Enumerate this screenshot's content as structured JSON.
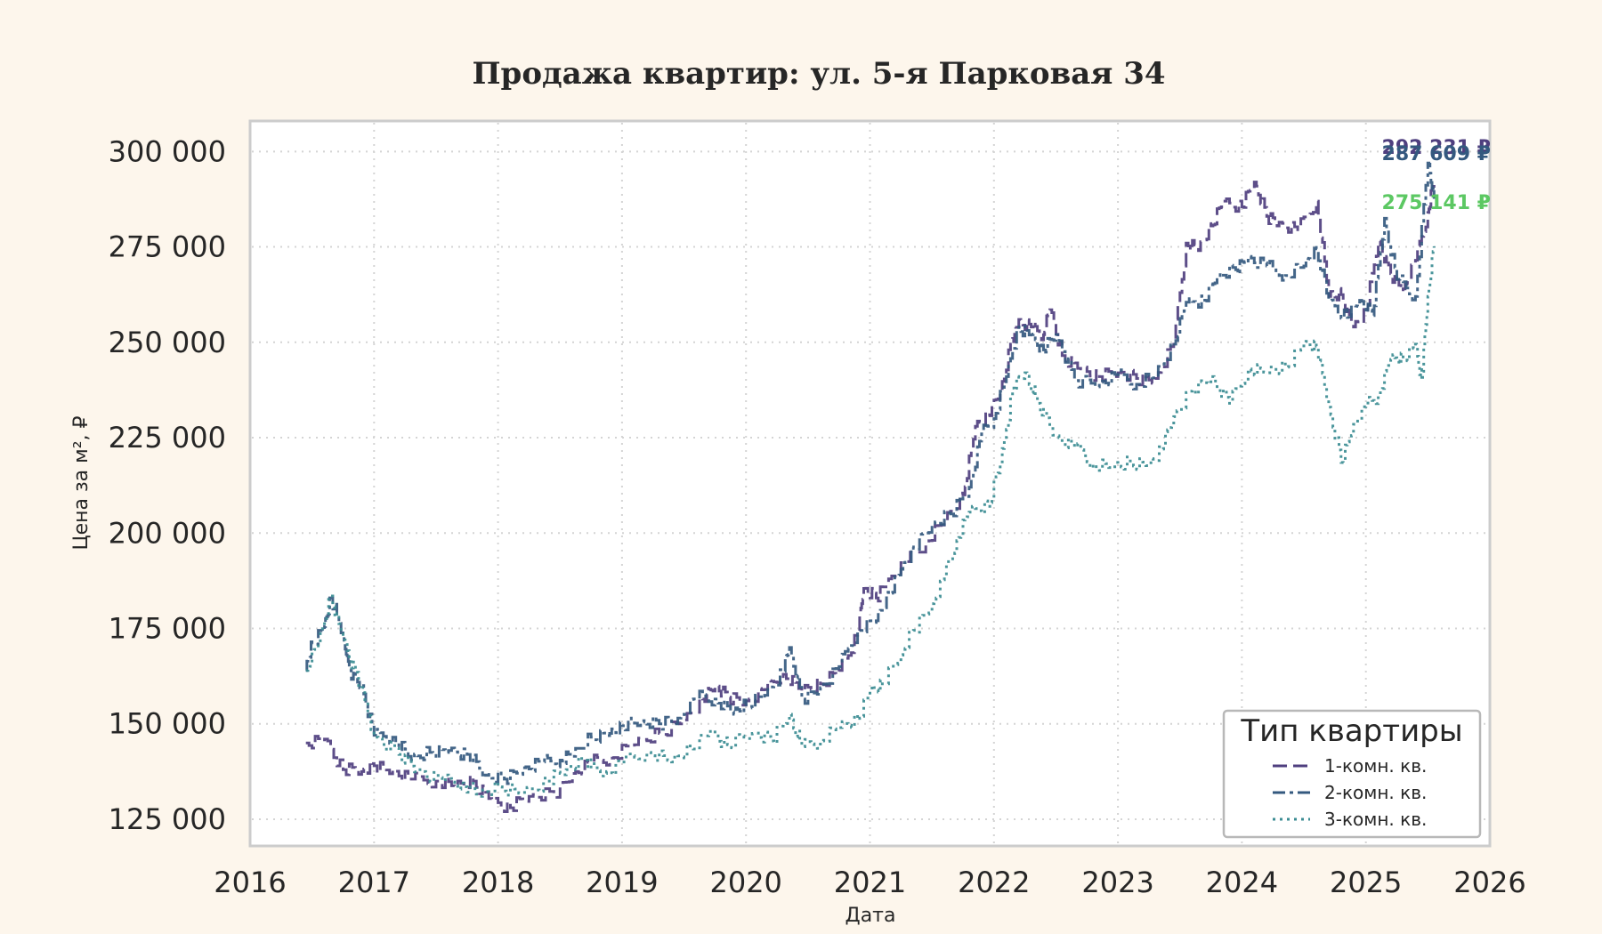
{
  "chart_data": {
    "type": "line",
    "title": "Продажа квартир: ул. 5-я Парковая 34",
    "xlabel": "Дата",
    "ylabel": "Цена за м², ₽",
    "xlim": [
      2016.0,
      2026.0
    ],
    "ylim": [
      118000,
      308000
    ],
    "x_ticks": [
      2016,
      2017,
      2018,
      2019,
      2020,
      2021,
      2022,
      2023,
      2024,
      2025,
      2026
    ],
    "y_ticks": [
      125000,
      150000,
      175000,
      200000,
      225000,
      250000,
      275000,
      300000
    ],
    "y_tick_labels": [
      "125 000",
      "150 000",
      "175 000",
      "200 000",
      "225 000",
      "250 000",
      "275 000",
      "300 000"
    ],
    "grid": true,
    "legend": {
      "title": "Тип квартиры",
      "placement": "bottom-right"
    },
    "series": [
      {
        "name": "1-комн. кв.",
        "color": "#4f3f7f",
        "style": "dashed",
        "end_label": "292 231 ₽",
        "points": [
          [
            2016.45,
            145000
          ],
          [
            2016.6,
            146000
          ],
          [
            2016.75,
            138000
          ],
          [
            2016.9,
            137500
          ],
          [
            2017.0,
            139000
          ],
          [
            2017.15,
            138000
          ],
          [
            2017.3,
            135500
          ],
          [
            2017.5,
            135000
          ],
          [
            2017.65,
            133500
          ],
          [
            2017.8,
            135000
          ],
          [
            2017.95,
            130000
          ],
          [
            2018.1,
            128000
          ],
          [
            2018.25,
            131000
          ],
          [
            2018.45,
            131500
          ],
          [
            2018.6,
            137000
          ],
          [
            2018.75,
            140000
          ],
          [
            2018.9,
            141000
          ],
          [
            2019.1,
            144500
          ],
          [
            2019.3,
            147500
          ],
          [
            2019.5,
            151000
          ],
          [
            2019.65,
            156500
          ],
          [
            2019.75,
            160000
          ],
          [
            2019.85,
            157000
          ],
          [
            2020.0,
            156000
          ],
          [
            2020.15,
            159000
          ],
          [
            2020.3,
            163000
          ],
          [
            2020.45,
            158500
          ],
          [
            2020.6,
            160500
          ],
          [
            2020.75,
            164000
          ],
          [
            2020.9,
            173500
          ],
          [
            2020.95,
            185500
          ],
          [
            2021.05,
            183000
          ],
          [
            2021.15,
            188000
          ],
          [
            2021.3,
            192500
          ],
          [
            2021.45,
            197500
          ],
          [
            2021.6,
            203000
          ],
          [
            2021.75,
            210000
          ],
          [
            2021.85,
            228000
          ],
          [
            2021.95,
            231000
          ],
          [
            2022.05,
            237000
          ],
          [
            2022.15,
            251000
          ],
          [
            2022.2,
            256000
          ],
          [
            2022.3,
            254000
          ],
          [
            2022.4,
            252000
          ],
          [
            2022.45,
            258500
          ],
          [
            2022.55,
            246500
          ],
          [
            2022.7,
            243000
          ],
          [
            2022.85,
            241000
          ],
          [
            2023.0,
            242000
          ],
          [
            2023.15,
            240500
          ],
          [
            2023.3,
            240500
          ],
          [
            2023.45,
            250000
          ],
          [
            2023.55,
            276000
          ],
          [
            2023.65,
            274000
          ],
          [
            2023.75,
            280500
          ],
          [
            2023.85,
            287000
          ],
          [
            2024.0,
            285500
          ],
          [
            2024.1,
            292000
          ],
          [
            2024.2,
            283000
          ],
          [
            2024.3,
            281500
          ],
          [
            2024.45,
            279500
          ],
          [
            2024.6,
            287000
          ],
          [
            2024.7,
            262000
          ],
          [
            2024.8,
            262500
          ],
          [
            2024.9,
            254000
          ],
          [
            2025.0,
            258000
          ],
          [
            2025.1,
            276500
          ],
          [
            2025.2,
            268000
          ],
          [
            2025.3,
            264000
          ],
          [
            2025.4,
            271500
          ],
          [
            2025.5,
            284000
          ],
          [
            2025.55,
            292231
          ]
        ]
      },
      {
        "name": "2-комн. кв.",
        "color": "#34597f",
        "style": "dash-dot",
        "end_label": "287 609 ₽",
        "points": [
          [
            2016.45,
            164000
          ],
          [
            2016.5,
            171000
          ],
          [
            2016.6,
            175500
          ],
          [
            2016.65,
            183000
          ],
          [
            2016.75,
            173000
          ],
          [
            2016.8,
            164000
          ],
          [
            2016.9,
            160000
          ],
          [
            2017.0,
            147000
          ],
          [
            2017.15,
            146500
          ],
          [
            2017.3,
            140500
          ],
          [
            2017.45,
            142500
          ],
          [
            2017.6,
            143000
          ],
          [
            2017.75,
            142000
          ],
          [
            2017.9,
            136500
          ],
          [
            2018.05,
            135500
          ],
          [
            2018.2,
            138500
          ],
          [
            2018.35,
            140000
          ],
          [
            2018.5,
            140500
          ],
          [
            2018.6,
            141500
          ],
          [
            2018.75,
            146500
          ],
          [
            2018.9,
            147500
          ],
          [
            2019.0,
            149500
          ],
          [
            2019.15,
            150500
          ],
          [
            2019.3,
            150000
          ],
          [
            2019.45,
            151500
          ],
          [
            2019.6,
            157000
          ],
          [
            2019.75,
            156500
          ],
          [
            2019.9,
            152500
          ],
          [
            2020.0,
            155000
          ],
          [
            2020.15,
            157500
          ],
          [
            2020.3,
            164000
          ],
          [
            2020.35,
            170000
          ],
          [
            2020.45,
            156500
          ],
          [
            2020.6,
            159500
          ],
          [
            2020.75,
            165000
          ],
          [
            2020.9,
            174500
          ],
          [
            2021.05,
            177000
          ],
          [
            2021.15,
            184000
          ],
          [
            2021.25,
            190500
          ],
          [
            2021.35,
            196000
          ],
          [
            2021.5,
            202000
          ],
          [
            2021.65,
            205000
          ],
          [
            2021.8,
            212000
          ],
          [
            2021.9,
            226000
          ],
          [
            2022.0,
            230000
          ],
          [
            2022.1,
            241000
          ],
          [
            2022.2,
            254000
          ],
          [
            2022.3,
            252000
          ],
          [
            2022.4,
            248000
          ],
          [
            2022.5,
            252000
          ],
          [
            2022.65,
            240000
          ],
          [
            2022.85,
            239500
          ],
          [
            2023.0,
            241500
          ],
          [
            2023.15,
            239000
          ],
          [
            2023.3,
            241000
          ],
          [
            2023.45,
            249500
          ],
          [
            2023.55,
            260500
          ],
          [
            2023.7,
            261000
          ],
          [
            2023.8,
            267500
          ],
          [
            2023.95,
            269000
          ],
          [
            2024.05,
            272500
          ],
          [
            2024.2,
            270000
          ],
          [
            2024.35,
            267500
          ],
          [
            2024.5,
            270000
          ],
          [
            2024.6,
            274500
          ],
          [
            2024.7,
            261000
          ],
          [
            2024.85,
            256500
          ],
          [
            2024.95,
            261000
          ],
          [
            2025.05,
            257000
          ],
          [
            2025.15,
            282500
          ],
          [
            2025.25,
            266500
          ],
          [
            2025.4,
            262000
          ],
          [
            2025.5,
            297000
          ],
          [
            2025.55,
            287609
          ]
        ]
      },
      {
        "name": "3-комн. кв.",
        "color": "#3b8c93",
        "style": "dotted",
        "end_label": "275 141 ₽",
        "end_label_color": "#5cc863",
        "points": [
          [
            2016.45,
            164000
          ],
          [
            2016.55,
            171000
          ],
          [
            2016.65,
            183500
          ],
          [
            2016.75,
            172000
          ],
          [
            2016.85,
            163500
          ],
          [
            2017.0,
            146500
          ],
          [
            2017.2,
            142000
          ],
          [
            2017.35,
            138000
          ],
          [
            2017.55,
            135000
          ],
          [
            2017.7,
            134500
          ],
          [
            2017.85,
            131000
          ],
          [
            2018.0,
            133500
          ],
          [
            2018.2,
            132000
          ],
          [
            2018.4,
            135000
          ],
          [
            2018.55,
            138000
          ],
          [
            2018.7,
            140500
          ],
          [
            2018.85,
            137000
          ],
          [
            2019.0,
            140000
          ],
          [
            2019.2,
            142500
          ],
          [
            2019.4,
            140000
          ],
          [
            2019.55,
            143500
          ],
          [
            2019.7,
            148000
          ],
          [
            2019.85,
            144500
          ],
          [
            2020.05,
            147500
          ],
          [
            2020.2,
            145500
          ],
          [
            2020.35,
            152500
          ],
          [
            2020.45,
            144000
          ],
          [
            2020.6,
            145500
          ],
          [
            2020.75,
            149000
          ],
          [
            2020.9,
            151000
          ],
          [
            2021.0,
            159000
          ],
          [
            2021.1,
            160500
          ],
          [
            2021.25,
            168000
          ],
          [
            2021.35,
            174500
          ],
          [
            2021.5,
            181500
          ],
          [
            2021.6,
            188500
          ],
          [
            2021.7,
            198000
          ],
          [
            2021.8,
            205500
          ],
          [
            2021.95,
            207000
          ],
          [
            2022.05,
            218000
          ],
          [
            2022.15,
            238000
          ],
          [
            2022.25,
            242000
          ],
          [
            2022.35,
            234000
          ],
          [
            2022.5,
            225500
          ],
          [
            2022.65,
            222500
          ],
          [
            2022.8,
            218000
          ],
          [
            2022.95,
            217000
          ],
          [
            2023.1,
            218500
          ],
          [
            2023.25,
            218000
          ],
          [
            2023.35,
            222000
          ],
          [
            2023.45,
            230500
          ],
          [
            2023.6,
            237500
          ],
          [
            2023.75,
            241000
          ],
          [
            2023.9,
            234000
          ],
          [
            2024.05,
            243000
          ],
          [
            2024.2,
            242000
          ],
          [
            2024.35,
            243500
          ],
          [
            2024.5,
            249500
          ],
          [
            2024.6,
            249000
          ],
          [
            2024.7,
            233000
          ],
          [
            2024.8,
            218500
          ],
          [
            2024.9,
            228500
          ],
          [
            2025.0,
            233500
          ],
          [
            2025.1,
            236000
          ],
          [
            2025.2,
            245500
          ],
          [
            2025.3,
            245500
          ],
          [
            2025.4,
            249500
          ],
          [
            2025.45,
            240000
          ],
          [
            2025.5,
            262000
          ],
          [
            2025.55,
            275141
          ]
        ]
      }
    ]
  }
}
